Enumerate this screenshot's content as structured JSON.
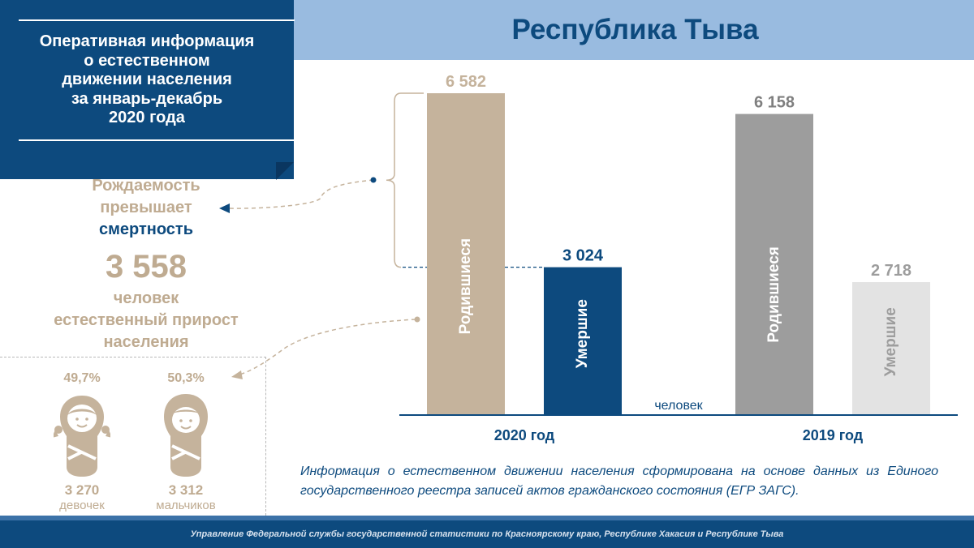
{
  "header": {
    "title": "Республика Тыва",
    "panel_lines": [
      "Оперативная информация",
      "о естественном",
      "движении населения",
      "за январь-декабрь",
      "2020 года"
    ]
  },
  "callout": {
    "line1": "Рождаемость",
    "line2": "превышает",
    "line3": "смертность",
    "growth_value": "3 558",
    "growth_line1": "человек",
    "growth_line2": "естественный прирост",
    "growth_line3": "населения"
  },
  "gender": {
    "girls": {
      "pct": "49,7%",
      "count": "3 270",
      "label": "девочек"
    },
    "boys": {
      "pct": "50,3%",
      "count": "3 312",
      "label": "мальчиков"
    }
  },
  "chart_data": {
    "type": "bar",
    "unit_label": "человек",
    "groups": [
      "2020 год",
      "2019 год"
    ],
    "series": [
      {
        "name": "Родившиеся",
        "values": [
          6582,
          6158
        ],
        "labels": [
          "6 582",
          "6 158"
        ]
      },
      {
        "name": "Умершие",
        "values": [
          3024,
          2718
        ],
        "labels": [
          "3 024",
          "2 718"
        ]
      }
    ],
    "colors": {
      "2020 год": [
        "#c5b39c",
        "#0d4a7e"
      ],
      "2019 год": [
        "#9d9d9d",
        "#e3e3e3"
      ]
    },
    "ylim": [
      0,
      6582
    ]
  },
  "note": "Информация о естественном движении населения сформирована на основе данных из Единого государственного реестра записей актов гражданского состояния (ЕГР ЗАГС).",
  "footer": "Управление Федеральной службы государственной статистики по Красноярскому краю, Республике Хакасия и Республике Тыва",
  "colors": {
    "navy": "#0d4a7e",
    "tan": "#bfab91",
    "header_blue": "#99bbe0"
  }
}
